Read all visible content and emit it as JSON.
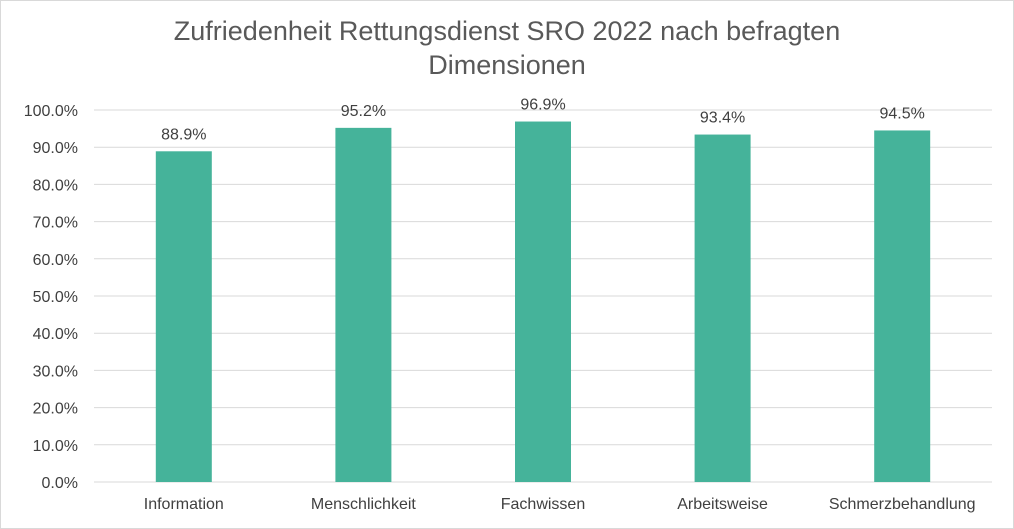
{
  "chart_data": {
    "type": "bar",
    "title_lines": [
      "Zufriedenheit Rettungsdienst SRO 2022 nach befragten",
      "Dimensionen"
    ],
    "categories": [
      "Information",
      "Menschlichkeit",
      "Fachwissen",
      "Arbeitsweise",
      "Schmerzbehandlung"
    ],
    "values": [
      88.9,
      95.2,
      96.9,
      93.4,
      94.5
    ],
    "value_labels": [
      "88.9%",
      "95.2%",
      "96.9%",
      "93.4%",
      "94.5%"
    ],
    "y_ticks": [
      0,
      10,
      20,
      30,
      40,
      50,
      60,
      70,
      80,
      90,
      100
    ],
    "y_tick_labels": [
      "0.0%",
      "10.0%",
      "20.0%",
      "30.0%",
      "40.0%",
      "50.0%",
      "60.0%",
      "70.0%",
      "80.0%",
      "90.0%",
      "100.0%"
    ],
    "ylim": [
      0,
      100
    ],
    "grid": true,
    "legend": "none",
    "colors": {
      "bar": "#45b39a",
      "grid": "#d9d9d9",
      "text": "#404040",
      "title": "#595959"
    }
  }
}
